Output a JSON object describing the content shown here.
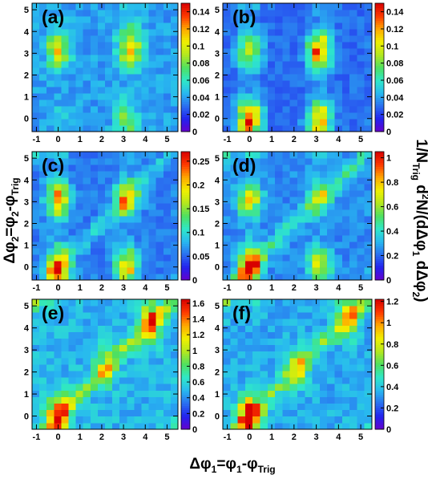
{
  "chart_data": {
    "type": "heatmap",
    "layout": "3 rows x 2 columns of 2D correlation maps, each with its own color scale",
    "xlabel": {
      "main": "Δφ",
      "sub": "1",
      "mid": "=φ",
      "sub2": "1",
      "tail": "-φ",
      "sub3": "Trig"
    },
    "ylabel": {
      "main": "Δφ",
      "sub": "2",
      "mid": "=φ",
      "sub2": "2",
      "tail": "-φ",
      "sub3": "Trig"
    },
    "zlabel": {
      "p1": "1/N",
      "s1": "Trig",
      "p2": " d",
      "sup": "2",
      "p3": "N/(dΔφ",
      "s2": "1",
      "p4": " dΔφ",
      "s3": "2",
      "p5": ")"
    },
    "x_range": [
      -1.2,
      5.5
    ],
    "y_range": [
      -0.6,
      5.3
    ],
    "x_ticks": [
      "-1",
      "0",
      "1",
      "2",
      "3",
      "4",
      "5"
    ],
    "y_ticks": [
      "0",
      "1",
      "2",
      "3",
      "4",
      "5"
    ],
    "bins_per_axis": 20,
    "colormap": [
      "#6600cc",
      "#2222ee",
      "#2a6ef0",
      "#28b8f0",
      "#2ee8c8",
      "#4ee060",
      "#b4e81e",
      "#f0f000",
      "#ffa800",
      "#ff3a00",
      "#d80000"
    ],
    "panels": [
      {
        "label": "(a)",
        "z_range": [
          0,
          0.15
        ],
        "z_ticks": [
          "0",
          "0.02",
          "0.04",
          "0.06",
          "0.08",
          "0.1",
          "0.12",
          "0.14"
        ],
        "peaks": [
          {
            "x": 0,
            "y": 3.14,
            "height": 0.1
          },
          {
            "x": 3.3,
            "y": 3.3,
            "height": 0.12
          },
          {
            "x": 3.14,
            "y": 0,
            "height": 0.08
          },
          {
            "x": 0,
            "y": 0,
            "height": 0.05
          }
        ],
        "ridge": 0,
        "background": 0.04
      },
      {
        "label": "(b)",
        "z_range": [
          0,
          0.15
        ],
        "z_ticks": [
          "0",
          "0.02",
          "0.04",
          "0.06",
          "0.08",
          "0.1",
          "0.12",
          "0.14"
        ],
        "peaks": [
          {
            "x": 0,
            "y": 3.14,
            "height": 0.1
          },
          {
            "x": 3.14,
            "y": 3.14,
            "height": 0.13
          },
          {
            "x": 3.14,
            "y": 0,
            "height": 0.12
          },
          {
            "x": 0,
            "y": 0,
            "height": 0.14
          }
        ],
        "ridge": 0,
        "background": 0.03
      },
      {
        "label": "(c)",
        "z_range": [
          0,
          0.27
        ],
        "z_ticks": [
          "0",
          "0.05",
          "0.1",
          "0.15",
          "0.2",
          "0.25"
        ],
        "peaks": [
          {
            "x": 0,
            "y": 3.14,
            "height": 0.22
          },
          {
            "x": 3.14,
            "y": 3.14,
            "height": 0.2
          },
          {
            "x": 3.14,
            "y": 0,
            "height": 0.2
          },
          {
            "x": 0,
            "y": 0,
            "height": 0.25
          }
        ],
        "ridge": 0.1,
        "background": 0.06
      },
      {
        "label": "(d)",
        "z_range": [
          0,
          1.05
        ],
        "z_ticks": [
          "0",
          "0.2",
          "0.4",
          "0.6",
          "0.8",
          "1"
        ],
        "peaks": [
          {
            "x": 0,
            "y": 3.14,
            "height": 0.75
          },
          {
            "x": 3.14,
            "y": 3.14,
            "height": 0.55
          },
          {
            "x": 3.14,
            "y": 0,
            "height": 0.7
          },
          {
            "x": 0,
            "y": 0,
            "height": 1.0
          }
        ],
        "ridge": 0.5,
        "background": 0.25
      },
      {
        "label": "(e)",
        "z_range": [
          0,
          1.65
        ],
        "z_ticks": [
          "0",
          "0.2",
          "0.4",
          "0.6",
          "0.8",
          "1",
          "1.2",
          "1.4",
          "1.6"
        ],
        "peaks": [
          {
            "x": 0,
            "y": 0,
            "height": 1.5
          },
          {
            "x": 2.2,
            "y": 2.2,
            "height": 0.9
          },
          {
            "x": 4.2,
            "y": 4.2,
            "height": 1.3
          }
        ],
        "ridge": 1.0,
        "background": 0.5
      },
      {
        "label": "(f)",
        "z_range": [
          0,
          1.22
        ],
        "z_ticks": [
          "0",
          "0.2",
          "0.4",
          "0.6",
          "0.8",
          "1",
          "1.2"
        ],
        "peaks": [
          {
            "x": 0,
            "y": 0,
            "height": 1.2
          },
          {
            "x": 2.2,
            "y": 2.2,
            "height": 0.65
          },
          {
            "x": 4.4,
            "y": 4.4,
            "height": 0.85
          }
        ],
        "ridge": 0.7,
        "background": 0.35
      }
    ]
  }
}
